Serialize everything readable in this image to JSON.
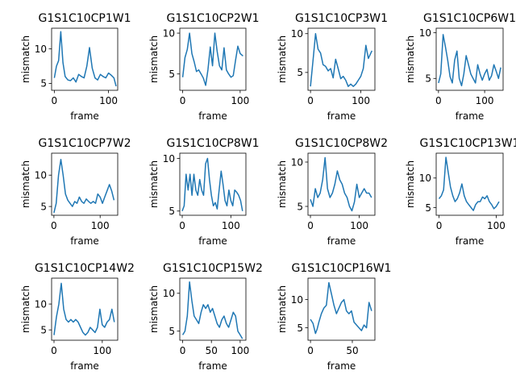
{
  "chart_data": [
    {
      "type": "line",
      "title": "G1S1C10CP1W1",
      "xlabel": "frame",
      "ylabel": "mismatch",
      "xlim": [
        -5,
        117
      ],
      "ylim": [
        4,
        13
      ],
      "xticks": [
        0,
        100
      ],
      "yticks": [
        5,
        10
      ],
      "series_color": "#1f77b4",
      "x": [
        0,
        4,
        8,
        12,
        16,
        20,
        25,
        30,
        35,
        40,
        45,
        50,
        55,
        60,
        65,
        70,
        75,
        80,
        85,
        90,
        95,
        100,
        105,
        110,
        114
      ],
      "y": [
        5.8,
        7.5,
        8.3,
        12.5,
        8,
        6,
        5.5,
        5.4,
        5.8,
        5.2,
        6.3,
        6,
        5.8,
        7.5,
        10.2,
        7.2,
        5.8,
        5.5,
        6.3,
        6,
        5.8,
        6.5,
        6.2,
        5.8,
        4.6
      ]
    },
    {
      "type": "line",
      "title": "G1S1C10CP2W1",
      "xlabel": "frame",
      "ylabel": "mismatch",
      "xlim": [
        -5,
        110
      ],
      "ylim": [
        3,
        10.6
      ],
      "xticks": [
        0,
        100
      ],
      "yticks": [
        5,
        10
      ],
      "series_color": "#1f77b4",
      "x": [
        0,
        4,
        8,
        12,
        16,
        20,
        24,
        28,
        32,
        36,
        40,
        44,
        48,
        52,
        56,
        60,
        64,
        68,
        72,
        76,
        80,
        84,
        88,
        92,
        96,
        100,
        105
      ],
      "y": [
        4.6,
        7,
        8,
        10,
        7.5,
        6.5,
        5.3,
        5.5,
        5,
        4.5,
        3.6,
        5.5,
        8.3,
        6,
        10,
        7.8,
        6,
        5.5,
        8.2,
        5.5,
        5,
        4.6,
        4.8,
        6.7,
        8.4,
        7.5,
        7.2
      ]
    },
    {
      "type": "line",
      "title": "G1S1C10CP3W1",
      "xlabel": "frame",
      "ylabel": "mismatch",
      "xlim": [
        -5,
        128
      ],
      "ylim": [
        2.7,
        10.7
      ],
      "xticks": [
        0,
        100
      ],
      "yticks": [
        5,
        10
      ],
      "series_color": "#1f77b4",
      "x": [
        0,
        5,
        10,
        15,
        20,
        25,
        30,
        35,
        40,
        45,
        50,
        55,
        60,
        65,
        70,
        75,
        80,
        85,
        90,
        95,
        100,
        105,
        110,
        115,
        122
      ],
      "y": [
        3.2,
        6.5,
        10,
        8,
        7.5,
        6,
        5.8,
        5.2,
        5.5,
        4.3,
        6.7,
        5.5,
        4.2,
        4.5,
        4,
        3.2,
        3.5,
        3.2,
        3.5,
        4,
        4.5,
        5.5,
        8.5,
        6.8,
        7.8
      ]
    },
    {
      "type": "line",
      "title": "G1S1C10CP6W1",
      "xlabel": "frame",
      "ylabel": "mismatch",
      "xlim": [
        -5,
        140
      ],
      "ylim": [
        3.7,
        10.5
      ],
      "xticks": [
        0,
        100
      ],
      "yticks": [
        5,
        10
      ],
      "series_color": "#1f77b4",
      "x": [
        0,
        5,
        10,
        15,
        20,
        25,
        30,
        35,
        40,
        45,
        50,
        55,
        60,
        65,
        70,
        75,
        80,
        85,
        90,
        95,
        100,
        105,
        110,
        115,
        120,
        125,
        130,
        135
      ],
      "y": [
        4.5,
        5.5,
        9.8,
        8.5,
        7,
        5.2,
        4.5,
        7,
        8,
        5,
        4.2,
        5.5,
        7.5,
        6.5,
        5.5,
        5,
        4.5,
        6.5,
        5.5,
        4.8,
        5.5,
        6,
        4.8,
        5.3,
        6.5,
        5.8,
        5,
        6.2
      ]
    },
    {
      "type": "line",
      "title": "G1S1C10CP7W2",
      "xlabel": "frame",
      "ylabel": "mismatch",
      "xlim": [
        -5,
        138
      ],
      "ylim": [
        3.6,
        13.5
      ],
      "xticks": [
        0,
        100
      ],
      "yticks": [
        5,
        10
      ],
      "series_color": "#1f77b4",
      "x": [
        0,
        5,
        10,
        15,
        20,
        25,
        30,
        35,
        40,
        45,
        50,
        55,
        60,
        65,
        70,
        75,
        80,
        85,
        90,
        95,
        100,
        105,
        110,
        115,
        120,
        125,
        130
      ],
      "y": [
        4,
        5.5,
        10,
        12.5,
        10,
        7,
        6,
        5.5,
        5,
        5.8,
        5.5,
        6.5,
        5.8,
        5.5,
        6.2,
        5.8,
        5.5,
        5.8,
        5.5,
        7,
        6.5,
        5.5,
        6.5,
        7.5,
        8.5,
        7.5,
        6
      ]
    },
    {
      "type": "line",
      "title": "G1S1C10CP8W1",
      "xlabel": "frame",
      "ylabel": "mismatch",
      "xlim": [
        -5,
        131
      ],
      "ylim": [
        4.6,
        10.5
      ],
      "xticks": [
        0,
        100
      ],
      "yticks": [
        5,
        10
      ],
      "series_color": "#1f77b4",
      "x": [
        0,
        4,
        8,
        12,
        16,
        20,
        24,
        28,
        32,
        36,
        40,
        44,
        48,
        52,
        56,
        60,
        64,
        68,
        72,
        76,
        80,
        84,
        88,
        92,
        96,
        100,
        104,
        108,
        112,
        116,
        120,
        124
      ],
      "y": [
        5,
        5.5,
        8.5,
        7,
        8.5,
        6.5,
        8.5,
        7,
        6.5,
        8,
        7,
        6.5,
        9.5,
        10,
        8,
        6.5,
        5.5,
        5.8,
        5.2,
        7,
        8.8,
        7.5,
        6,
        5.5,
        7,
        6,
        5.5,
        7,
        6.8,
        6.5,
        6,
        5
      ]
    },
    {
      "type": "line",
      "title": "G1S1C10CP8W2",
      "xlabel": "frame",
      "ylabel": "mismatch",
      "xlim": [
        -5,
        132
      ],
      "ylim": [
        4,
        11
      ],
      "xticks": [
        0,
        100
      ],
      "yticks": [
        5,
        10
      ],
      "series_color": "#1f77b4",
      "x": [
        0,
        5,
        10,
        15,
        20,
        25,
        30,
        35,
        40,
        45,
        50,
        55,
        60,
        65,
        70,
        75,
        80,
        85,
        90,
        95,
        100,
        105,
        110,
        115,
        120,
        125
      ],
      "y": [
        5.8,
        5,
        7,
        6,
        6.5,
        8,
        10.5,
        7,
        6,
        6.5,
        7.5,
        9,
        8,
        7.5,
        6.5,
        6,
        5,
        4.5,
        5.5,
        7.5,
        6,
        6.5,
        7,
        6.5,
        6.5,
        6
      ]
    },
    {
      "type": "line",
      "title": "G1S1C10CP13W1",
      "xlabel": "frame",
      "ylabel": "mismatch",
      "xlim": [
        -5,
        112
      ],
      "ylim": [
        3.7,
        14.2
      ],
      "xticks": [
        0,
        100
      ],
      "yticks": [
        5,
        10
      ],
      "series_color": "#1f77b4",
      "x": [
        0,
        4,
        8,
        12,
        16,
        20,
        24,
        28,
        32,
        36,
        40,
        44,
        48,
        52,
        56,
        60,
        64,
        68,
        72,
        76,
        80,
        84,
        88,
        92,
        96,
        100,
        105
      ],
      "y": [
        6.5,
        7,
        8,
        13.5,
        11,
        8.5,
        7,
        6,
        6.5,
        7.5,
        9,
        7,
        6,
        5.5,
        5,
        4.5,
        5.5,
        6,
        6,
        6.8,
        6.5,
        7,
        6,
        5.5,
        4.8,
        5.2,
        6
      ]
    },
    {
      "type": "line",
      "title": "G1S1C10CP14W2",
      "xlabel": "frame",
      "ylabel": "mismatch",
      "xlim": [
        -5,
        132
      ],
      "ylim": [
        3,
        15
      ],
      "xticks": [
        0,
        100
      ],
      "yticks": [
        5,
        10
      ],
      "series_color": "#1f77b4",
      "x": [
        0,
        5,
        10,
        15,
        20,
        25,
        30,
        35,
        40,
        45,
        50,
        55,
        60,
        65,
        70,
        75,
        80,
        85,
        90,
        95,
        100,
        105,
        110,
        115,
        120,
        125
      ],
      "y": [
        4,
        7.5,
        10,
        14,
        9,
        7,
        6.5,
        7,
        6.5,
        7,
        6.5,
        5.5,
        4.5,
        4,
        4.5,
        5.5,
        5,
        4.5,
        5.5,
        9,
        6,
        5.5,
        6.5,
        7,
        9,
        6.5
      ]
    },
    {
      "type": "line",
      "title": "G1S1C10CP15W2",
      "xlabel": "frame",
      "ylabel": "mismatch",
      "xlim": [
        -5,
        110
      ],
      "ylim": [
        3.8,
        12
      ],
      "xticks": [
        0,
        50,
        100
      ],
      "yticks": [
        5,
        10
      ],
      "series_color": "#1f77b4",
      "x": [
        0,
        4,
        8,
        12,
        16,
        20,
        24,
        28,
        32,
        36,
        40,
        44,
        48,
        52,
        56,
        60,
        64,
        68,
        72,
        76,
        80,
        84,
        88,
        92,
        96,
        100,
        104
      ],
      "y": [
        4.5,
        5,
        7,
        11.5,
        9,
        7,
        6.5,
        6,
        7.5,
        8.5,
        8,
        8.5,
        7.5,
        8,
        7,
        6,
        5.5,
        6.5,
        7,
        6,
        5.5,
        6.5,
        7.5,
        7,
        5,
        4.5,
        4
      ]
    },
    {
      "type": "line",
      "title": "G1S1C10CP16W1",
      "xlabel": "frame",
      "ylabel": "mismatch",
      "xlim": [
        -3,
        77
      ],
      "ylim": [
        2.8,
        13.8
      ],
      "xticks": [
        0,
        50
      ],
      "yticks": [
        5,
        10
      ],
      "series_color": "#1f77b4",
      "x": [
        0,
        3,
        6,
        8,
        10,
        13,
        16,
        19,
        22,
        25,
        28,
        31,
        34,
        37,
        40,
        43,
        46,
        49,
        52,
        55,
        58,
        61,
        64,
        67,
        70,
        73
      ],
      "y": [
        6.5,
        5.8,
        4,
        4.8,
        6,
        7.5,
        8.5,
        9,
        13,
        11,
        9,
        7.5,
        8.5,
        9.5,
        10,
        8,
        7.5,
        8,
        6,
        5.5,
        5,
        4.5,
        5.5,
        5,
        9.5,
        8
      ]
    }
  ]
}
